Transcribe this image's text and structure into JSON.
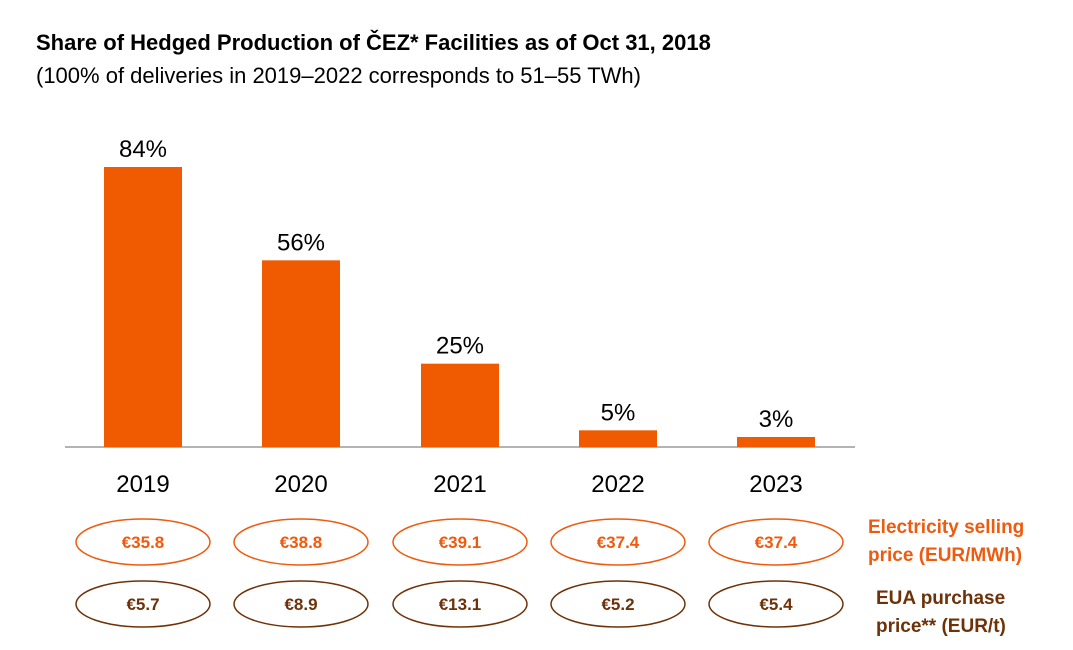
{
  "chart_data": {
    "type": "bar",
    "title": "Share of Hedged Production of ČEZ* Facilities as of Oct 31, 2018",
    "subtitle": "(100% of deliveries in 2019–2022 corresponds to 51–55 TWh)",
    "categories": [
      "2019",
      "2020",
      "2021",
      "2022",
      "2023"
    ],
    "values": [
      84,
      56,
      25,
      5,
      3
    ],
    "value_labels": [
      "84%",
      "56%",
      "25%",
      "5%",
      "3%"
    ],
    "unit": "%",
    "ylim": [
      0,
      100
    ],
    "grid": false,
    "bar_color": "#f05a00"
  },
  "price_rows": {
    "electricity": {
      "label_line1": "Electricity selling",
      "label_line2": "price (EUR/MWh)",
      "values": [
        "€35.8",
        "€38.8",
        "€39.1",
        "€37.4",
        "€37.4"
      ],
      "color": "#ee5a0e"
    },
    "eua": {
      "label_line1": "EUA purchase",
      "label_line2": "price** (EUR/t)",
      "values": [
        "€5.7",
        "€8.9",
        "€13.1",
        "€5.2",
        "€5.4"
      ],
      "color": "#6e3208"
    }
  }
}
